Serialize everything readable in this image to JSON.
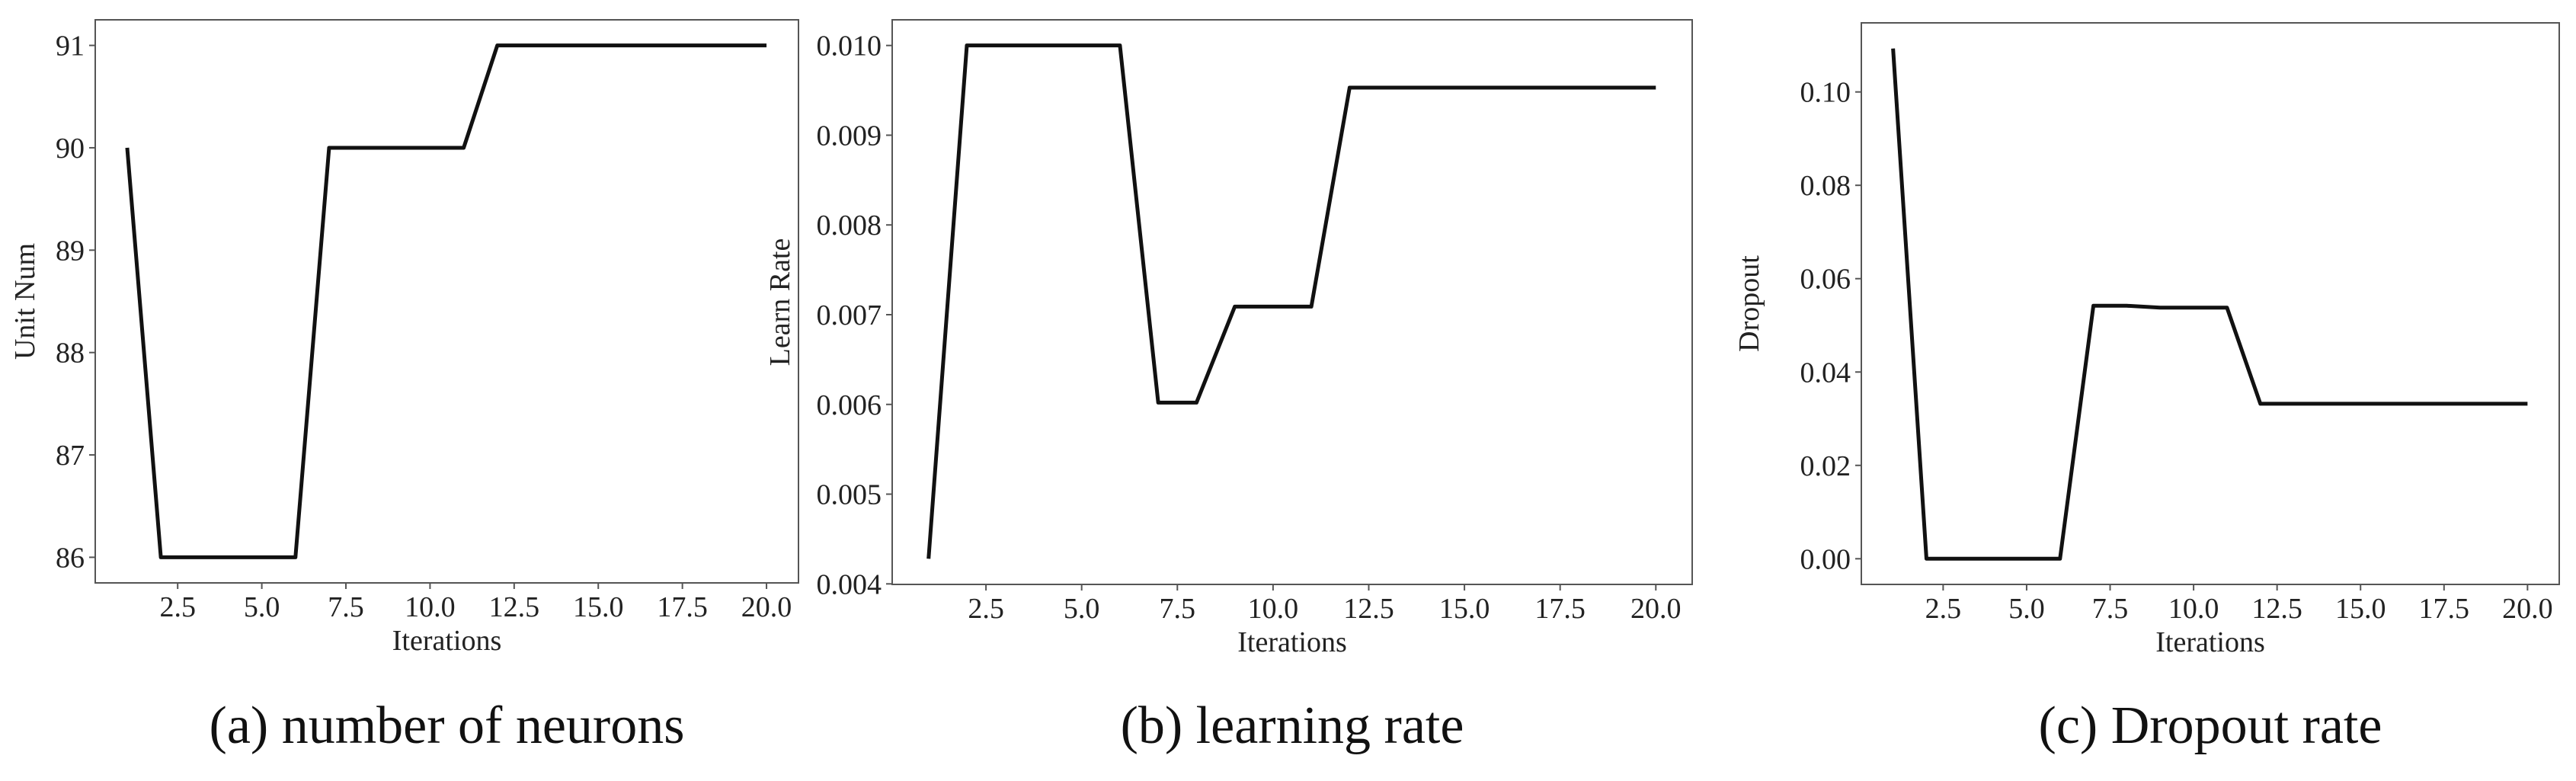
{
  "chart_data": [
    {
      "type": "line",
      "caption": "(a) number of neurons",
      "xlabel": "Iterations",
      "ylabel": "Unit Num",
      "color": "#111111",
      "x": [
        1,
        2,
        3,
        4,
        5,
        6,
        7,
        8,
        9,
        10,
        11,
        12,
        13,
        14,
        15,
        16,
        17,
        18,
        19,
        20
      ],
      "values": [
        90,
        86,
        86,
        86,
        86,
        86,
        90,
        90,
        90,
        90,
        90,
        91,
        91,
        91,
        91,
        91,
        91,
        91,
        91,
        91
      ],
      "xlim": [
        0.05,
        20.95
      ],
      "ylim": [
        85.75,
        91.25
      ],
      "xticks": [
        2.5,
        {
          "value": 5,
          "label": "5.0"
        },
        7.5,
        {
          "value": 10,
          "label": "10.0"
        },
        12.5,
        {
          "value": 15,
          "label": "15.0"
        },
        17.5,
        {
          "value": 20,
          "label": "20.0"
        }
      ],
      "yticks": [
        86,
        87,
        88,
        89,
        90,
        91
      ]
    },
    {
      "type": "line",
      "caption": "(b) learning rate",
      "xlabel": "Iterations",
      "ylabel": "Learn Rate",
      "color": "#111111",
      "x": [
        1,
        2,
        3,
        4,
        5,
        6,
        7,
        8,
        9,
        10,
        11,
        12,
        13,
        14,
        15,
        16,
        17,
        18,
        19,
        20
      ],
      "values": [
        0.00428,
        0.01,
        0.01,
        0.01,
        0.01,
        0.01,
        0.00602,
        0.00602,
        0.00709,
        0.00709,
        0.00709,
        0.00953,
        0.00953,
        0.00953,
        0.00953,
        0.00953,
        0.00953,
        0.00953,
        0.00953,
        0.00953
      ],
      "xlim": [
        0.05,
        20.95
      ],
      "ylim": [
        0.003994,
        0.010286
      ],
      "xticks": [
        2.5,
        {
          "value": 5,
          "label": "5.0"
        },
        7.5,
        {
          "value": 10,
          "label": "10.0"
        },
        12.5,
        {
          "value": 15,
          "label": "15.0"
        },
        17.5,
        {
          "value": 20,
          "label": "20.0"
        }
      ],
      "yticks": [
        0.004,
        0.005,
        0.006,
        0.007,
        0.008,
        0.009,
        {
          "value": 0.01,
          "label": "0.010"
        }
      ]
    },
    {
      "type": "line",
      "caption": "(c) Dropout rate",
      "xlabel": "Iterations",
      "ylabel": "Dropout",
      "color": "#111111",
      "x": [
        1,
        2,
        3,
        4,
        5,
        6,
        7,
        8,
        9,
        10,
        11,
        12,
        13,
        14,
        15,
        16,
        17,
        18,
        19,
        20
      ],
      "values": [
        0.1093,
        0,
        0,
        0,
        0,
        0,
        0.0542,
        0.0542,
        0.0538,
        0.0538,
        0.0538,
        0.0332,
        0.0332,
        0.0332,
        0.0332,
        0.0332,
        0.0332,
        0.0332,
        0.0332,
        0.0332
      ],
      "xlim": [
        0.05,
        20.95
      ],
      "ylim": [
        -0.0055,
        0.1148
      ],
      "xticks": [
        2.5,
        {
          "value": 5,
          "label": "5.0"
        },
        7.5,
        {
          "value": 10,
          "label": "10.0"
        },
        12.5,
        {
          "value": 15,
          "label": "15.0"
        },
        17.5,
        {
          "value": 20,
          "label": "20.0"
        }
      ],
      "yticks": [
        {
          "value": 0,
          "label": "0.00"
        },
        0.02,
        0.04,
        0.06,
        0.08,
        {
          "value": 0.1,
          "label": "0.10"
        }
      ]
    }
  ]
}
